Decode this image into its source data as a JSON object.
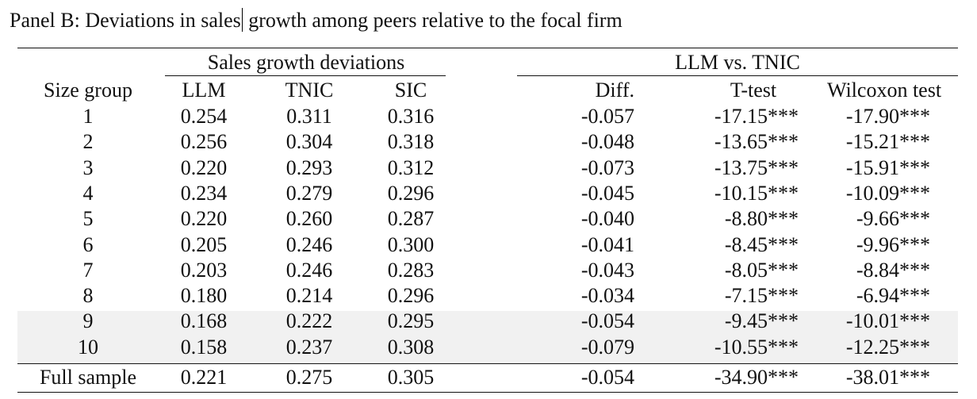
{
  "title_part1": "Panel B: Deviations in sales",
  "title_part2": " growth among peers relative to the focal firm",
  "group_headers": {
    "sales": "Sales growth deviations",
    "llm_vs_tnic": "LLM vs. TNIC"
  },
  "columns": [
    "Size group",
    "LLM",
    "TNIC",
    "SIC",
    "Diff.",
    "T-test",
    "Wilcoxon test"
  ],
  "rows": [
    [
      "1",
      "0.254",
      "0.311",
      "0.316",
      "-0.057",
      "-17.15***",
      "-17.90***"
    ],
    [
      "2",
      "0.256",
      "0.304",
      "0.318",
      "-0.048",
      "-13.65***",
      "-15.21***"
    ],
    [
      "3",
      "0.220",
      "0.293",
      "0.312",
      "-0.073",
      "-13.75***",
      "-15.91***"
    ],
    [
      "4",
      "0.234",
      "0.279",
      "0.296",
      "-0.045",
      "-10.15***",
      "-10.09***"
    ],
    [
      "5",
      "0.220",
      "0.260",
      "0.287",
      "-0.040",
      "-8.80***",
      "-9.66***"
    ],
    [
      "6",
      "0.205",
      "0.246",
      "0.300",
      "-0.041",
      "-8.45***",
      "-9.96***"
    ],
    [
      "7",
      "0.203",
      "0.246",
      "0.283",
      "-0.043",
      "-8.05***",
      "-8.84***"
    ],
    [
      "8",
      "0.180",
      "0.214",
      "0.296",
      "-0.034",
      "-7.15***",
      "-6.94***"
    ],
    [
      "9",
      "0.168",
      "0.222",
      "0.295",
      "-0.054",
      "-9.45***",
      "-10.01***"
    ],
    [
      "10",
      "0.158",
      "0.237",
      "0.308",
      "-0.079",
      "-10.55***",
      "-12.25***"
    ]
  ],
  "full_sample": [
    "Full sample",
    "0.221",
    "0.275",
    "0.305",
    "-0.054",
    "-34.90***",
    "-38.01***"
  ]
}
